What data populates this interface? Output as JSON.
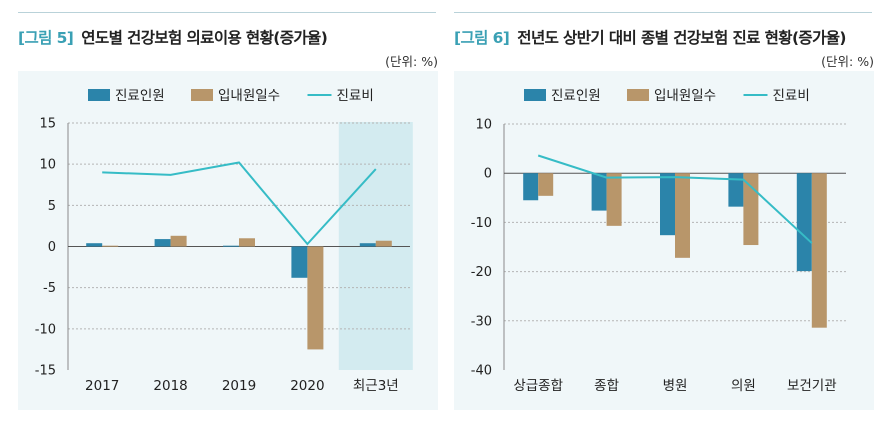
{
  "figures": [
    {
      "fig_label": "[그림 5]",
      "title": "연도별 건강보험 의료이용 현황(증가율)",
      "unit": "(단위: %)"
    },
    {
      "fig_label": "[그림 6]",
      "title": "전년도 상반기 대비 종별 건강보험 진료 현황(증가율)",
      "unit": "(단위: %)"
    }
  ],
  "colors": {
    "series1": "#2b84aa",
    "series2": "#b8966a",
    "line": "#36bcc6",
    "highlight": "#d3ebf0",
    "background": "#f0f7f9"
  },
  "chart_data": [
    {
      "type": "bar",
      "title": "연도별 건강보험 의료이용 현황(증가율)",
      "xlabel": "",
      "ylabel": "",
      "categories": [
        "2017",
        "2018",
        "2019",
        "2020",
        "최근3년"
      ],
      "ylim": [
        -15,
        15
      ],
      "yticks": [
        15,
        10,
        5,
        0,
        -5,
        -10,
        -15
      ],
      "grid": true,
      "legend_position": "top",
      "highlight_category": "최근3년",
      "series": [
        {
          "name": "진료인원",
          "kind": "bar",
          "values": [
            0.4,
            0.9,
            0.1,
            -3.8,
            0.4
          ]
        },
        {
          "name": "입내원일수",
          "kind": "bar",
          "values": [
            0.1,
            1.3,
            1.0,
            -12.5,
            0.7
          ]
        },
        {
          "name": "진료비",
          "kind": "line",
          "values": [
            9.0,
            8.7,
            10.2,
            0.3,
            9.4
          ]
        }
      ]
    },
    {
      "type": "bar",
      "title": "전년도 상반기 대비 종별 건강보험 진료 현황(증가율)",
      "xlabel": "",
      "ylabel": "",
      "categories": [
        "상급종합",
        "종합",
        "병원",
        "의원",
        "보건기관"
      ],
      "ylim": [
        -40,
        10
      ],
      "yticks": [
        10,
        0,
        -10,
        -20,
        -30,
        -40
      ],
      "grid": true,
      "legend_position": "top",
      "series": [
        {
          "name": "진료인원",
          "kind": "bar",
          "values": [
            -5.5,
            -7.6,
            -12.6,
            -6.8,
            -19.9
          ]
        },
        {
          "name": "입내원일수",
          "kind": "bar",
          "values": [
            -4.6,
            -10.7,
            -17.2,
            -14.6,
            -31.4
          ]
        },
        {
          "name": "진료비",
          "kind": "line",
          "values": [
            3.6,
            -0.9,
            -0.8,
            -1.3,
            -14.2
          ]
        }
      ]
    }
  ]
}
